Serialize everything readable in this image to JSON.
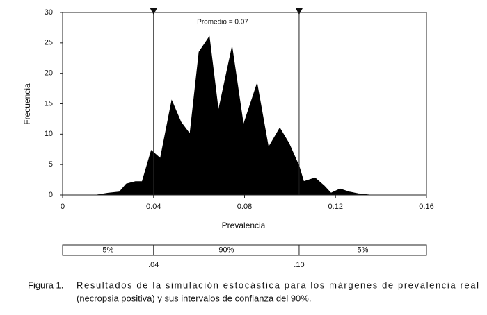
{
  "chart_data": {
    "type": "area",
    "y_label": "Frecuencia",
    "x_label": "Prevalencia",
    "annotation": "Promedio = 0.07",
    "x": [
      0.015,
      0.02,
      0.025,
      0.028,
      0.032,
      0.035,
      0.039,
      0.043,
      0.048,
      0.052,
      0.056,
      0.06,
      0.0645,
      0.0685,
      0.0745,
      0.0795,
      0.0855,
      0.0905,
      0.0955,
      0.0995,
      0.104,
      0.106,
      0.111,
      0.115,
      0.118,
      0.122,
      0.126,
      0.13,
      0.135
    ],
    "values": [
      0,
      0.3,
      0.5,
      1.8,
      2.2,
      2.2,
      7.3,
      6,
      15.5,
      12,
      10,
      23.5,
      26,
      13.8,
      24.3,
      11.5,
      18.3,
      7.8,
      11,
      8.5,
      4.7,
      2.2,
      2.8,
      1.5,
      0.3,
      1,
      0.5,
      0.2,
      0
    ],
    "color": "#000000",
    "xlim": [
      0,
      0.16
    ],
    "xticks": [
      0,
      0.04,
      0.08,
      0.12,
      0.16
    ],
    "ylim": [
      0,
      30
    ],
    "yticks": [
      0,
      5,
      10,
      15,
      20,
      25,
      30
    ],
    "interval": [
      {
        "value": 0.04,
        "label": ".04"
      },
      {
        "value": 0.104,
        "label": ".10"
      }
    ],
    "interval_labels": [
      "5%",
      "90%",
      "5%"
    ],
    "caption": {
      "label": "Figura 1.",
      "lines": [
        "Resultados de la simulación estocástica para los márgenes de prevalencia real",
        "(necropsia positiva) y sus intervalos de confianza del 90%."
      ]
    }
  }
}
